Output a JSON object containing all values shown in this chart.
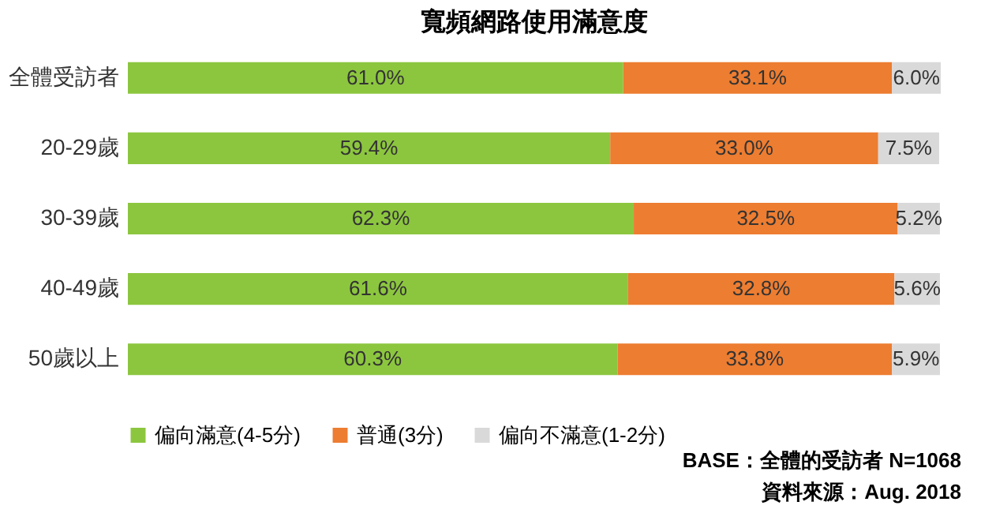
{
  "chart_data": {
    "type": "bar",
    "orientation": "horizontal",
    "stacked": true,
    "title": "寬頻網路使用滿意度",
    "categories": [
      "全體受訪者",
      "20-29歲",
      "30-39歲",
      "40-49歲",
      "50歲以上"
    ],
    "series": [
      {
        "name": "偏向滿意(4-5分)",
        "color": "#8cc63f",
        "values": [
          61.0,
          59.4,
          62.3,
          61.6,
          60.3
        ],
        "value_labels": [
          "61.0%",
          "59.4%",
          "62.3%",
          "61.6%",
          "60.3%"
        ]
      },
      {
        "name": "普通(3分)",
        "color": "#ed7d31",
        "values": [
          33.1,
          33.0,
          32.5,
          32.8,
          33.8
        ],
        "value_labels": [
          "33.1%",
          "33.0%",
          "32.5%",
          "32.8%",
          "33.8%"
        ]
      },
      {
        "name": "偏向不滿意(1-2分)",
        "color": "#d9d9d9",
        "values": [
          6.0,
          7.5,
          5.2,
          5.6,
          5.9
        ],
        "value_labels": [
          "6.0%",
          "7.5%",
          "5.2%",
          "5.6%",
          "5.9%"
        ]
      }
    ],
    "legend": "bottom",
    "annotations": [
      "BASE：全體的受訪者 N=1068",
      "資料來源：Aug. 2018"
    ]
  }
}
